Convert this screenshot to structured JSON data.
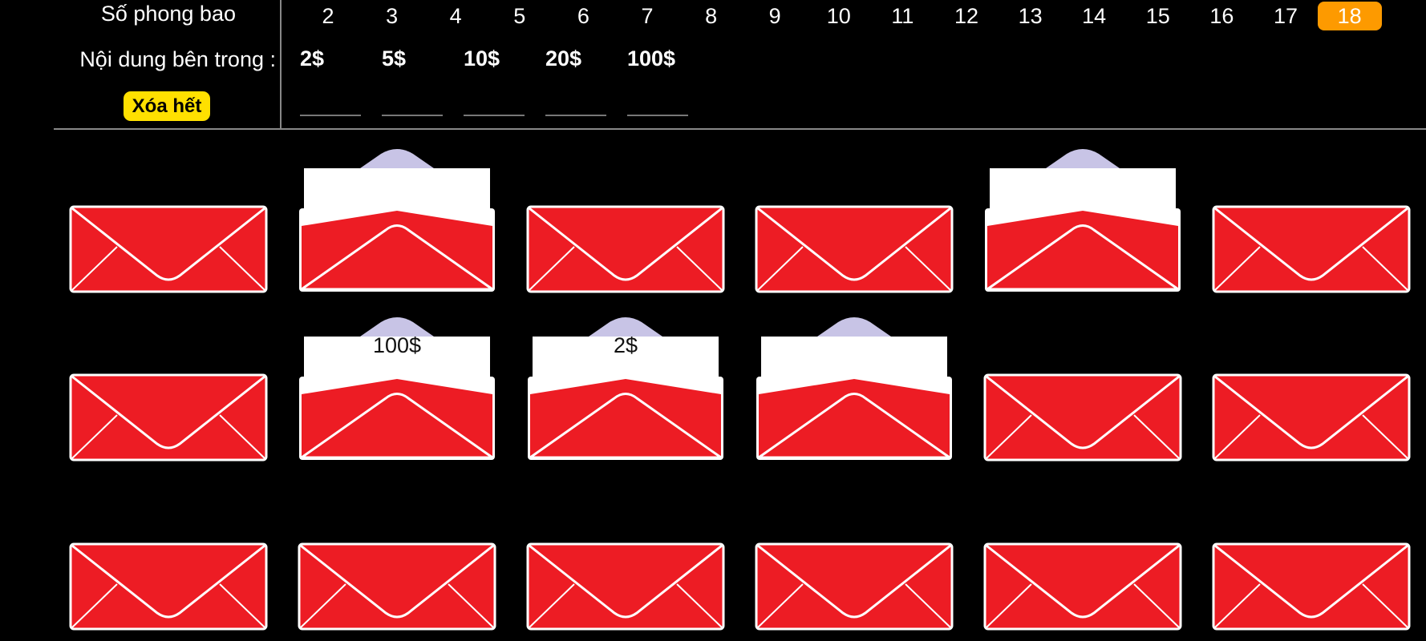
{
  "header": {
    "count_label": "Số phong bao",
    "content_label": "Nội dung bên trong :",
    "clear_button": "Xóa hết"
  },
  "envelope_counts": [
    "2",
    "3",
    "4",
    "5",
    "6",
    "7",
    "8",
    "9",
    "10",
    "11",
    "12",
    "13",
    "14",
    "15",
    "16",
    "17",
    "18"
  ],
  "selected_count": "18",
  "contents": [
    "2$",
    "5$",
    "10$",
    "20$",
    "100$"
  ],
  "envelopes": [
    {
      "state": "closed",
      "text": ""
    },
    {
      "state": "open",
      "text": ""
    },
    {
      "state": "closed",
      "text": ""
    },
    {
      "state": "closed",
      "text": ""
    },
    {
      "state": "open",
      "text": ""
    },
    {
      "state": "closed",
      "text": ""
    },
    {
      "state": "closed",
      "text": ""
    },
    {
      "state": "open",
      "text": "100$"
    },
    {
      "state": "open",
      "text": "2$"
    },
    {
      "state": "open",
      "text": ""
    },
    {
      "state": "closed",
      "text": ""
    },
    {
      "state": "closed",
      "text": ""
    },
    {
      "state": "closed",
      "text": ""
    },
    {
      "state": "closed",
      "text": ""
    },
    {
      "state": "closed",
      "text": ""
    },
    {
      "state": "closed",
      "text": ""
    },
    {
      "state": "closed",
      "text": ""
    },
    {
      "state": "closed",
      "text": ""
    }
  ],
  "colors": {
    "envelope_red": "#ed1c24",
    "letter_white": "#ffffff",
    "flap_lavender": "#c8c4e6",
    "selected_orange": "#fd9a00",
    "clear_yellow": "#ffe000"
  }
}
